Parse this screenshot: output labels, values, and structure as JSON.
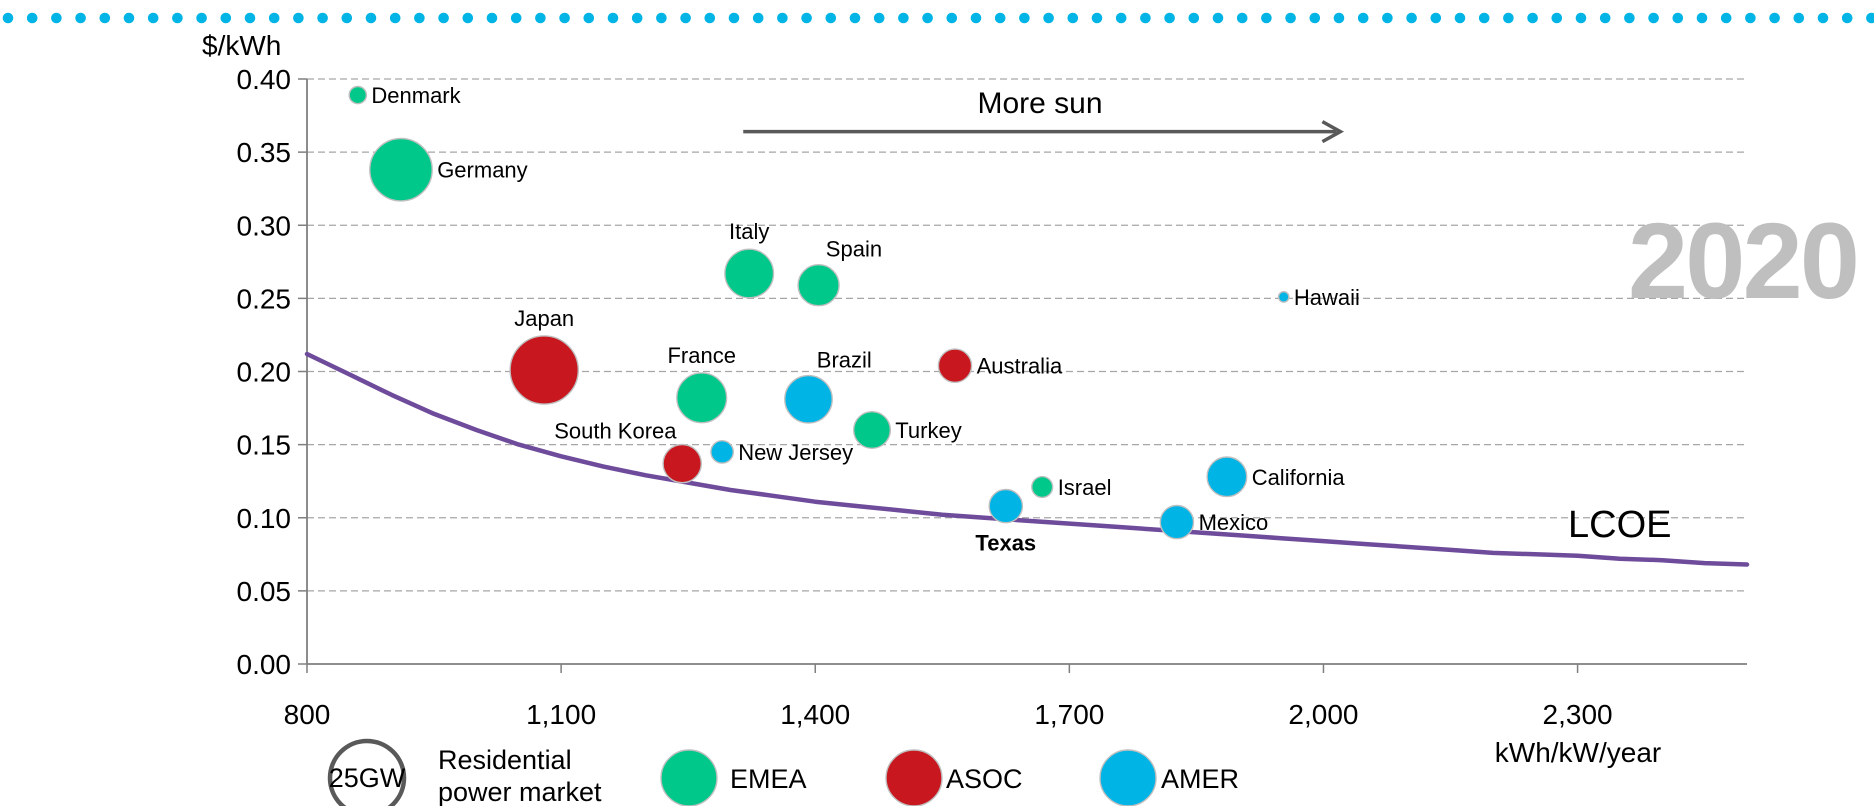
{
  "chart_data": {
    "type": "scatter",
    "subtype": "bubble",
    "ylabel": "$/kWh",
    "xlabel": "kWh/kW/year",
    "xlim": [
      800,
      2500
    ],
    "ylim": [
      0,
      0.4
    ],
    "x_ticks": [
      800,
      1100,
      1400,
      1700,
      2000,
      2300
    ],
    "x_tick_labels": [
      "800",
      "1,100",
      "1,400",
      "1,700",
      "2,000",
      "2,300"
    ],
    "y_ticks": [
      0,
      0.05,
      0.1,
      0.15,
      0.2,
      0.25,
      0.3,
      0.35,
      0.4
    ],
    "y_tick_labels": [
      "0.00",
      "0.05",
      "0.10",
      "0.15",
      "0.20",
      "0.25",
      "0.30",
      "0.35",
      "0.40"
    ],
    "grid": "horizontal dashed",
    "year_label": "2020",
    "arrow_label": "More sun",
    "arrow_span": [
      1315,
      2020
    ],
    "arrow_y": 0.364,
    "regions": [
      {
        "name": "EMEA",
        "color": "#00c88a"
      },
      {
        "name": "ASOC",
        "color": "#c8171e"
      },
      {
        "name": "AMER",
        "color": "#00b4e6"
      }
    ],
    "points": [
      {
        "label": "Denmark",
        "region": "EMEA",
        "x": 860,
        "y": 0.389,
        "size_gw": 1.5,
        "label_pos": "right"
      },
      {
        "label": "Germany",
        "region": "EMEA",
        "x": 911,
        "y": 0.338,
        "size_gw": 33,
        "label_pos": "right"
      },
      {
        "label": "Italy",
        "region": "EMEA",
        "x": 1322,
        "y": 0.267,
        "size_gw": 19,
        "label_pos": "top"
      },
      {
        "label": "Spain",
        "region": "EMEA",
        "x": 1404,
        "y": 0.259,
        "size_gw": 13,
        "label_pos": "top-right"
      },
      {
        "label": "Japan",
        "region": "ASOC",
        "x": 1080,
        "y": 0.201,
        "size_gw": 40,
        "label_pos": "top"
      },
      {
        "label": "France",
        "region": "EMEA",
        "x": 1266,
        "y": 0.182,
        "size_gw": 20,
        "label_pos": "top"
      },
      {
        "label": "Brazil",
        "region": "AMER",
        "x": 1392,
        "y": 0.181,
        "size_gw": 18,
        "label_pos": "top-right"
      },
      {
        "label": "Australia",
        "region": "ASOC",
        "x": 1565,
        "y": 0.204,
        "size_gw": 8,
        "label_pos": "right"
      },
      {
        "label": "Turkey",
        "region": "EMEA",
        "x": 1467,
        "y": 0.16,
        "size_gw": 10,
        "label_pos": "right"
      },
      {
        "label": "Hawaii",
        "region": "AMER",
        "x": 1953,
        "y": 0.251,
        "size_gw": 0.3,
        "label_pos": "right"
      },
      {
        "label": "South Korea",
        "region": "ASOC",
        "x": 1243,
        "y": 0.137,
        "size_gw": 11,
        "label_pos": "top-left"
      },
      {
        "label": "New Jersey",
        "region": "AMER",
        "x": 1290,
        "y": 0.145,
        "size_gw": 3,
        "label_pos": "right"
      },
      {
        "label": "Israel",
        "region": "EMEA",
        "x": 1668,
        "y": 0.121,
        "size_gw": 2.5,
        "label_pos": "right"
      },
      {
        "label": "California",
        "region": "AMER",
        "x": 1886,
        "y": 0.128,
        "size_gw": 12,
        "label_pos": "right"
      },
      {
        "label": "Texas",
        "region": "AMER",
        "x": 1625,
        "y": 0.108,
        "size_gw": 8,
        "label_pos": "bottom",
        "label_color": "#f5861f"
      },
      {
        "label": "Mexico",
        "region": "AMER",
        "x": 1827,
        "y": 0.097,
        "size_gw": 8,
        "label_pos": "right"
      }
    ],
    "curve": {
      "name": "LCOE",
      "color": "#6f4c9b",
      "x": [
        800,
        850,
        900,
        950,
        1000,
        1050,
        1100,
        1150,
        1200,
        1250,
        1300,
        1350,
        1400,
        1450,
        1500,
        1550,
        1600,
        1650,
        1700,
        1750,
        1800,
        1850,
        1900,
        1950,
        2000,
        2050,
        2100,
        2150,
        2200,
        2250,
        2300,
        2350,
        2400,
        2450,
        2500
      ],
      "y": [
        0.212,
        0.198,
        0.184,
        0.171,
        0.16,
        0.15,
        0.142,
        0.135,
        0.129,
        0.124,
        0.119,
        0.115,
        0.111,
        0.108,
        0.105,
        0.102,
        0.1,
        0.098,
        0.096,
        0.094,
        0.092,
        0.09,
        0.088,
        0.086,
        0.084,
        0.082,
        0.08,
        0.078,
        0.076,
        0.075,
        0.074,
        0.072,
        0.071,
        0.069,
        0.068
      ]
    },
    "legend": {
      "position": "bottom",
      "size_reference_label": "25GW",
      "size_reference_gw": 25,
      "size_text_line1": "Residential",
      "size_text_line2": "power market",
      "entries": [
        "EMEA",
        "ASOC",
        "AMER"
      ]
    }
  },
  "decoration": {
    "dot_color": "#00b4e6"
  }
}
